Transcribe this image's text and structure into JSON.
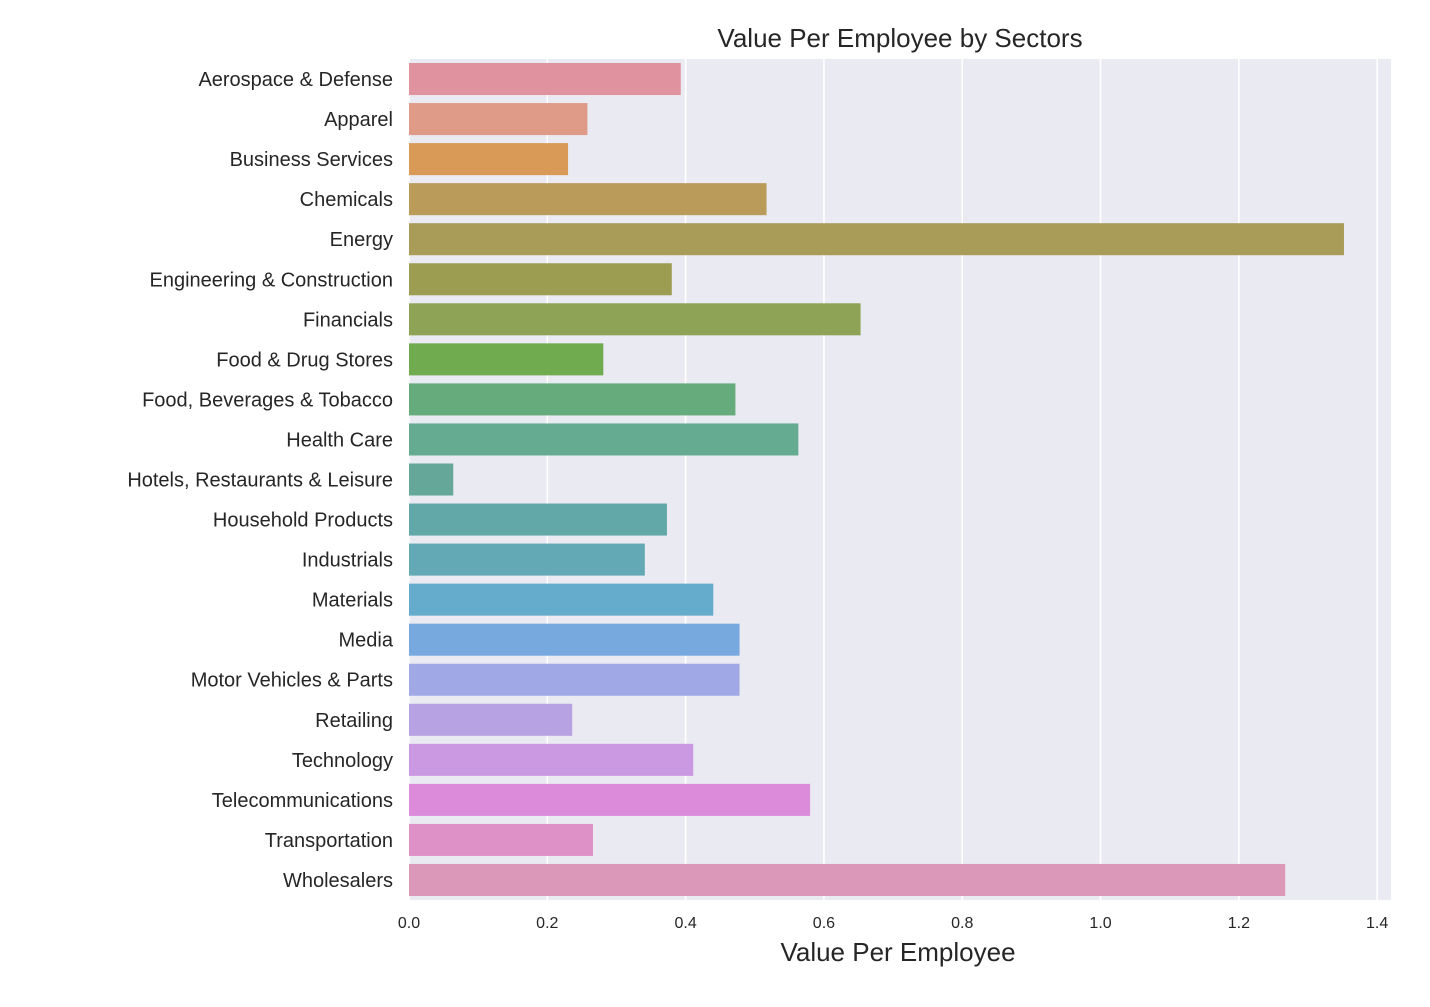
{
  "chart_data": {
    "type": "bar",
    "orientation": "horizontal",
    "title": "Value Per Employee by Sectors",
    "xlabel": "Value Per Employee",
    "ylabel": "",
    "xlim": [
      0,
      1.42
    ],
    "xticks": [
      0.0,
      0.2,
      0.4,
      0.6,
      0.8,
      1.0,
      1.2,
      1.4
    ],
    "xtick_labels": [
      "0.0",
      "0.2",
      "0.4",
      "0.6",
      "0.8",
      "1.0",
      "1.2",
      "1.4"
    ],
    "grid": true,
    "legend": "none",
    "background_color": "#eaeaf2",
    "grid_color": "#ffffff",
    "categories": [
      "Aerospace & Defense",
      "Apparel",
      "Business Services",
      "Chemicals",
      "Energy",
      "Engineering & Construction",
      "Financials",
      "Food & Drug Stores",
      "Food, Beverages & Tobacco",
      "Health Care",
      "Hotels, Restaurants & Leisure",
      "Household Products",
      "Industrials",
      "Materials",
      "Media",
      "Motor Vehicles & Parts",
      "Retailing",
      "Technology",
      "Telecommunications",
      "Transportation",
      "Wholesalers"
    ],
    "values": [
      0.393,
      0.258,
      0.23,
      0.517,
      1.352,
      0.38,
      0.653,
      0.281,
      0.472,
      0.563,
      0.064,
      0.373,
      0.341,
      0.44,
      0.478,
      0.478,
      0.236,
      0.411,
      0.58,
      0.266,
      1.267
    ],
    "colors": [
      "#e0939e",
      "#e09a88",
      "#d99a58",
      "#bb9b5a",
      "#a99c58",
      "#9d9d52",
      "#8ea356",
      "#70ab50",
      "#66ab7c",
      "#65ab92",
      "#65a89a",
      "#63a8a8",
      "#63a8b5",
      "#65abcb",
      "#78a9de",
      "#a0a9e5",
      "#b7a3e3",
      "#cb98e2",
      "#dc8bdb",
      "#dd91c7",
      "#dc98b8"
    ]
  }
}
